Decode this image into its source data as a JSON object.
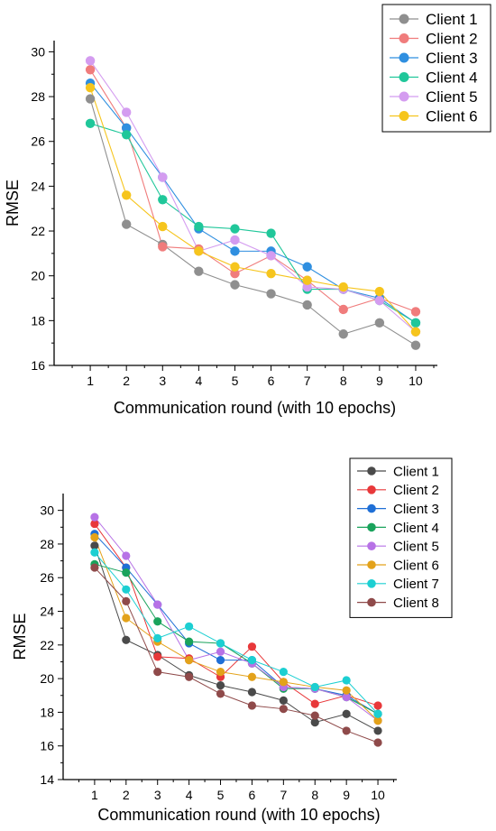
{
  "chart_data": [
    {
      "type": "line",
      "title": "",
      "xlabel": "Communication round (with 10 epochs)",
      "ylabel": "RMSE",
      "xlim": [
        0,
        10.6
      ],
      "ylim": [
        16,
        30.5
      ],
      "x_ticks": [
        1,
        2,
        3,
        4,
        5,
        6,
        7,
        8,
        9,
        10
      ],
      "y_ticks": [
        16,
        18,
        20,
        22,
        24,
        26,
        28,
        30
      ],
      "legend_position": "top-right",
      "categories": [
        1,
        2,
        3,
        4,
        5,
        6,
        7,
        8,
        9,
        10
      ],
      "series": [
        {
          "name": "Client 1",
          "color": "#8f8f8f",
          "values": [
            27.9,
            22.3,
            21.4,
            20.2,
            19.6,
            19.2,
            18.7,
            17.4,
            17.9,
            16.9
          ]
        },
        {
          "name": "Client 2",
          "color": "#f07c7c",
          "values": [
            29.2,
            26.6,
            21.3,
            21.2,
            20.1,
            20.9,
            19.8,
            18.5,
            19.0,
            18.4
          ]
        },
        {
          "name": "Client 3",
          "color": "#2f8fe0",
          "values": [
            28.6,
            26.6,
            24.4,
            22.1,
            21.1,
            21.1,
            20.4,
            19.4,
            19.0,
            17.9
          ]
        },
        {
          "name": "Client 4",
          "color": "#20c79a",
          "values": [
            26.8,
            26.3,
            23.4,
            22.2,
            22.1,
            21.9,
            19.4,
            19.4,
            18.9,
            17.9
          ]
        },
        {
          "name": "Client 5",
          "color": "#d49cf0",
          "values": [
            29.6,
            27.3,
            24.4,
            21.1,
            21.6,
            20.9,
            19.5,
            19.4,
            18.9,
            17.5
          ]
        },
        {
          "name": "Client 6",
          "color": "#f6c51d",
          "values": [
            28.4,
            23.6,
            22.2,
            21.1,
            20.4,
            20.1,
            19.8,
            19.5,
            19.3,
            17.5
          ]
        }
      ]
    },
    {
      "type": "line",
      "title": "",
      "xlabel": "Communication round (with 10 epochs)",
      "ylabel": "RMSE",
      "xlim": [
        0,
        10.6
      ],
      "ylim": [
        14,
        31
      ],
      "x_ticks": [
        1,
        2,
        3,
        4,
        5,
        6,
        7,
        8,
        9,
        10
      ],
      "y_ticks": [
        14,
        16,
        18,
        20,
        22,
        24,
        26,
        28,
        30
      ],
      "legend_position": "top-right",
      "categories": [
        1,
        2,
        3,
        4,
        5,
        6,
        7,
        8,
        9,
        10
      ],
      "series": [
        {
          "name": "Client 1",
          "color": "#4a4a4a",
          "values": [
            27.9,
            22.3,
            21.4,
            20.2,
            19.6,
            19.2,
            18.7,
            17.4,
            17.9,
            16.9
          ]
        },
        {
          "name": "Client 2",
          "color": "#e8383a",
          "values": [
            29.2,
            26.6,
            21.3,
            21.2,
            20.1,
            21.9,
            19.8,
            18.5,
            19.0,
            18.4
          ]
        },
        {
          "name": "Client 3",
          "color": "#1f6fd6",
          "values": [
            28.6,
            26.6,
            24.4,
            22.1,
            21.1,
            21.1,
            19.5,
            19.4,
            19.0,
            17.9
          ]
        },
        {
          "name": "Client 4",
          "color": "#1aa35c",
          "values": [
            26.8,
            26.3,
            23.4,
            22.2,
            22.1,
            20.9,
            19.4,
            19.4,
            18.9,
            17.9
          ]
        },
        {
          "name": "Client 5",
          "color": "#b772e6",
          "values": [
            29.6,
            27.3,
            24.4,
            21.1,
            21.6,
            20.9,
            19.5,
            19.4,
            18.9,
            17.5
          ]
        },
        {
          "name": "Client 6",
          "color": "#e3a21a",
          "values": [
            28.4,
            23.6,
            22.2,
            21.1,
            20.4,
            20.1,
            19.8,
            19.5,
            19.3,
            17.5
          ]
        },
        {
          "name": "Client 7",
          "color": "#1ccfd2",
          "values": [
            27.5,
            25.3,
            22.4,
            23.1,
            22.1,
            21.1,
            20.4,
            19.5,
            19.9,
            17.9
          ]
        },
        {
          "name": "Client 8",
          "color": "#8f4a4a",
          "values": [
            26.6,
            24.6,
            20.4,
            20.1,
            19.1,
            18.4,
            18.2,
            17.8,
            16.9,
            16.2
          ]
        }
      ]
    }
  ]
}
